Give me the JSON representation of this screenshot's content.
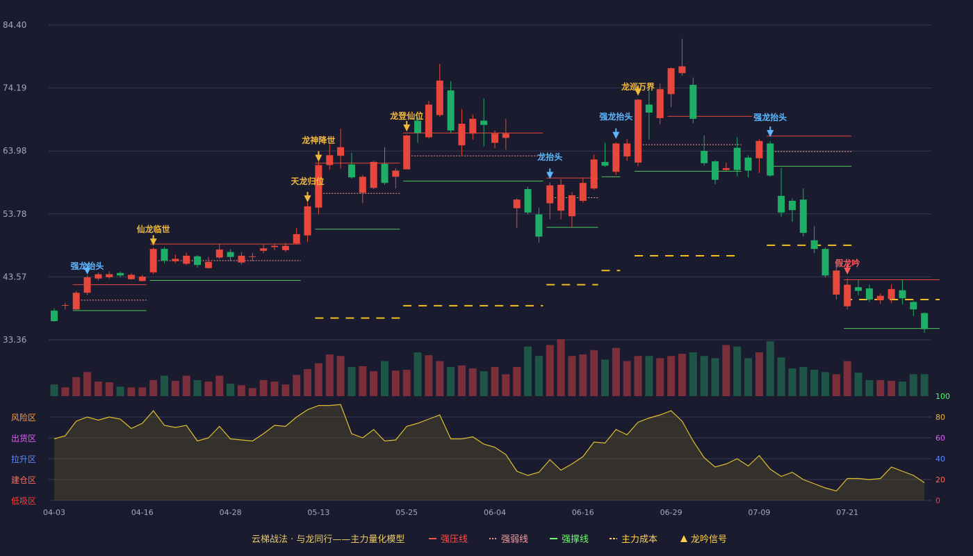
{
  "chart_data": {
    "type": "candlestick",
    "price_axis": {
      "ticks": [
        "84.40",
        "74.19",
        "63.98",
        "53.78",
        "43.57",
        "33.36"
      ],
      "ylim": [
        33.36,
        84.4
      ]
    },
    "date_ticks": [
      {
        "label": "04-03",
        "index": 0
      },
      {
        "label": "04-16",
        "index": 8
      },
      {
        "label": "04-28",
        "index": 16
      },
      {
        "label": "05-13",
        "index": 24
      },
      {
        "label": "05-25",
        "index": 32
      },
      {
        "label": "06-04",
        "index": 40
      },
      {
        "label": "06-16",
        "index": 48
      },
      {
        "label": "06-29",
        "index": 56
      },
      {
        "label": "07-09",
        "index": 64
      },
      {
        "label": "07-21",
        "index": 72
      }
    ],
    "candles": [
      [
        38.1,
        36.4,
        38.5,
        36.3
      ],
      [
        38.9,
        39.0,
        39.4,
        38.3
      ],
      [
        38.3,
        41.0,
        41.3,
        38.2
      ],
      [
        41.0,
        43.5,
        43.8,
        40.6
      ],
      [
        43.3,
        44.0,
        44.3,
        43.0
      ],
      [
        43.5,
        44.0,
        44.4,
        43.3
      ],
      [
        44.2,
        43.8,
        44.4,
        43.5
      ],
      [
        43.2,
        43.9,
        44.2,
        43.1
      ],
      [
        42.9,
        43.6,
        43.9,
        42.8
      ],
      [
        44.3,
        48.1,
        48.3,
        44.0
      ],
      [
        48.1,
        46.2,
        48.4,
        45.8
      ],
      [
        46.1,
        46.5,
        47.2,
        45.8
      ],
      [
        45.7,
        47.0,
        47.5,
        45.5
      ],
      [
        46.9,
        45.5,
        47.1,
        45.1
      ],
      [
        45.0,
        46.0,
        46.8,
        44.9
      ],
      [
        46.7,
        48.0,
        49.0,
        46.5
      ],
      [
        47.6,
        46.8,
        48.1,
        46.1
      ],
      [
        45.9,
        47.0,
        47.6,
        45.6
      ],
      [
        46.9,
        46.9,
        47.5,
        46.1
      ],
      [
        47.8,
        48.2,
        48.9,
        47.4
      ],
      [
        48.4,
        48.6,
        49.0,
        47.9
      ],
      [
        47.9,
        48.6,
        49.1,
        47.6
      ],
      [
        49.0,
        50.5,
        51.5,
        48.9
      ],
      [
        50.3,
        55.0,
        55.6,
        49.2
      ],
      [
        54.8,
        61.7,
        62.3,
        53.7
      ],
      [
        61.7,
        63.3,
        65.1,
        60.9
      ],
      [
        63.2,
        64.6,
        67.6,
        61.1
      ],
      [
        61.8,
        59.7,
        63.7,
        59.5
      ],
      [
        57.2,
        59.8,
        60.1,
        55.5
      ],
      [
        58.0,
        62.2,
        62.4,
        57.8
      ],
      [
        61.9,
        58.8,
        64.6,
        58.5
      ],
      [
        59.8,
        60.8,
        61.2,
        57.9
      ],
      [
        61.0,
        66.5,
        66.6,
        61.0
      ],
      [
        68.9,
        66.9,
        69.5,
        65.3
      ],
      [
        66.2,
        71.5,
        72.1,
        66.0
      ],
      [
        69.8,
        75.4,
        78.1,
        69.5
      ],
      [
        73.8,
        67.3,
        75.3,
        66.9
      ],
      [
        64.9,
        68.4,
        70.8,
        63.3
      ],
      [
        66.8,
        69.2,
        69.9,
        65.8
      ],
      [
        68.9,
        68.2,
        72.5,
        64.7
      ],
      [
        65.3,
        66.8,
        67.3,
        64.4
      ],
      [
        66.1,
        66.8,
        69.2,
        64.2
      ],
      [
        54.7,
        56.1,
        56.3,
        51.5
      ],
      [
        57.8,
        54.0,
        58.2,
        53.7
      ],
      [
        53.7,
        50.1,
        54.8,
        49.1
      ],
      [
        55.5,
        58.4,
        58.9,
        52.9
      ],
      [
        54.3,
        58.5,
        59.4,
        52.9
      ],
      [
        53.4,
        56.8,
        57.3,
        51.6
      ],
      [
        55.9,
        58.8,
        59.7,
        55.6
      ],
      [
        57.9,
        62.6,
        63.4,
        57.7
      ],
      [
        62.2,
        61.6,
        65.3,
        61.4
      ],
      [
        60.6,
        65.2,
        65.4,
        60.1
      ],
      [
        63.1,
        65.2,
        65.9,
        62.4
      ],
      [
        62.1,
        72.3,
        72.4,
        61.5
      ],
      [
        71.5,
        70.2,
        74.3,
        65.8
      ],
      [
        69.3,
        74.0,
        74.9,
        68.3
      ],
      [
        73.2,
        77.4,
        77.5,
        71.1
      ],
      [
        76.6,
        77.7,
        82.2,
        76.2
      ],
      [
        74.7,
        69.2,
        75.9,
        68.5
      ],
      [
        64.0,
        62.0,
        66.5,
        61.6
      ],
      [
        62.3,
        59.3,
        62.5,
        58.6
      ],
      [
        60.9,
        61.2,
        62.1,
        60.8
      ],
      [
        64.5,
        60.9,
        66.2,
        59.9
      ],
      [
        62.9,
        60.8,
        63.3,
        59.7
      ],
      [
        62.8,
        65.6,
        65.9,
        60.4
      ],
      [
        65.2,
        60.0,
        65.6,
        59.8
      ],
      [
        56.7,
        54.0,
        61.2,
        53.3
      ],
      [
        55.9,
        54.4,
        56.3,
        52.5
      ],
      [
        56.1,
        50.7,
        57.9,
        50.1
      ],
      [
        49.5,
        48.1,
        51.8,
        47.4
      ],
      [
        48.1,
        43.8,
        48.3,
        43.5
      ],
      [
        40.7,
        44.6,
        45.5,
        39.9
      ],
      [
        38.8,
        42.3,
        43.3,
        38.3
      ],
      [
        41.9,
        41.3,
        43.1,
        40.6
      ],
      [
        41.7,
        39.9,
        42.3,
        39.5
      ],
      [
        39.8,
        40.5,
        40.9,
        39.2
      ],
      [
        40.0,
        41.6,
        42.4,
        39.3
      ],
      [
        41.4,
        40.1,
        43.1,
        39.1
      ],
      [
        39.5,
        38.3,
        39.7,
        37.2
      ],
      [
        37.7,
        35.1,
        37.8,
        34.5
      ]
    ],
    "volume": [
      16,
      12,
      26,
      33,
      20,
      19,
      13,
      12,
      12,
      22,
      28,
      21,
      28,
      22,
      20,
      28,
      17,
      15,
      11,
      22,
      20,
      16,
      29,
      37,
      45,
      57,
      55,
      40,
      41,
      34,
      48,
      35,
      36,
      60,
      56,
      48,
      40,
      42,
      38,
      34,
      40,
      30,
      40,
      68,
      55,
      70,
      78,
      55,
      57,
      63,
      50,
      66,
      48,
      55,
      55,
      52,
      55,
      58,
      60,
      55,
      52,
      70,
      68,
      52,
      60,
      75,
      53,
      38,
      40,
      36,
      33,
      30,
      48,
      32,
      22,
      22,
      21,
      20,
      30,
      30
    ],
    "signals": [
      {
        "label": "强龙抬头",
        "index": 3,
        "price": 43.5,
        "color": "#5bb8ff",
        "dir": "down",
        "label_y": 387
      },
      {
        "label": "仙龙临世",
        "index": 9,
        "price": 48.2,
        "color": "#f0b93a",
        "dir": "down",
        "label_y": 334
      },
      {
        "label": "天龙归位",
        "index": 23,
        "price": 55.2,
        "color": "#f0b93a",
        "dir": "down",
        "label_y": 265
      },
      {
        "label": "龙神降世",
        "index": 24,
        "price": 61.8,
        "color": "#f0b93a",
        "dir": "down",
        "label_y": 206
      },
      {
        "label": "龙登仙位",
        "index": 32,
        "price": 66.7,
        "color": "#f0b93a",
        "dir": "down",
        "label_y": 171
      },
      {
        "label": "龙抬头",
        "index": 45,
        "price": 59.0,
        "color": "#5bb8ff",
        "dir": "down",
        "label_y": 230
      },
      {
        "label": "强龙抬头",
        "index": 51,
        "price": 65.5,
        "color": "#5bb8ff",
        "dir": "down",
        "label_y": 172
      },
      {
        "label": "龙巡万界",
        "index": 53,
        "price": 72.5,
        "color": "#f0b93a",
        "dir": "down",
        "label_y": 129
      },
      {
        "label": "强龙抬头",
        "index": 65,
        "price": 65.8,
        "color": "#5bb8ff",
        "dir": "down",
        "label_y": 173
      },
      {
        "label": "假龙吟",
        "index": 72,
        "price": 43.5,
        "color": "#ff5a5a",
        "dir": "down",
        "label_y": 383
      }
    ],
    "levels": [
      {
        "start": 2,
        "end": 8,
        "strong": 42.3,
        "weak": 39.8,
        "support": 38.1,
        "cost": null
      },
      {
        "start": 9,
        "end": 22,
        "strong": 48.9,
        "weak": 46.2,
        "support": 43.0,
        "cost": null
      },
      {
        "start": 24,
        "end": 31,
        "strong": 62.0,
        "weak": 57.1,
        "support": 51.3,
        "cost": 36.9
      },
      {
        "start": 32,
        "end": 44,
        "strong": 66.9,
        "weak": 63.2,
        "support": 59.1,
        "cost": 38.9
      },
      {
        "start": 45,
        "end": 49,
        "strong": 59.6,
        "weak": 56.4,
        "support": 51.6,
        "cost": 42.3
      },
      {
        "start": 50,
        "end": 51,
        "strong": null,
        "weak": null,
        "support": 59.8,
        "cost": 44.6
      },
      {
        "start": 53,
        "end": 62,
        "strong": null,
        "weak": 65.0,
        "support": 60.7,
        "cost": 47.0
      },
      {
        "start": 56,
        "end": 63,
        "strong": 69.6,
        "weak": null,
        "support": null,
        "cost": null
      },
      {
        "start": 65,
        "end": 72,
        "strong": 66.4,
        "weak": 63.9,
        "support": 61.5,
        "cost": 48.7
      },
      {
        "start": 72,
        "end": 80,
        "strong": 43.1,
        "weak": null,
        "support": 35.2,
        "cost": 39.9
      }
    ],
    "oscillator": {
      "ylim": [
        0,
        100
      ],
      "right_ticks": [
        {
          "label": "100",
          "color": "#4cff6a"
        },
        {
          "label": "80",
          "color": "#f0b93a"
        },
        {
          "label": "60",
          "color": "#e05cff"
        },
        {
          "label": "40",
          "color": "#5b8bff"
        },
        {
          "label": "20",
          "color": "#ff6b5a"
        },
        {
          "label": "0",
          "color": "#ff3b3b"
        }
      ],
      "zones": [
        {
          "label": "风险区",
          "color": "#ff9a3c",
          "value": 80
        },
        {
          "label": "出货区",
          "color": "#e05cff",
          "value": 60
        },
        {
          "label": "拉升区",
          "color": "#5b8bff",
          "value": 40
        },
        {
          "label": "建仓区",
          "color": "#ff6b5a",
          "value": 20
        },
        {
          "label": "低吸区",
          "color": "#ff3b3b",
          "value": 0
        }
      ],
      "values": [
        59,
        62,
        76,
        80,
        77,
        80,
        78,
        69,
        74,
        86,
        72,
        70,
        72,
        57,
        60,
        71,
        59,
        58,
        57,
        64,
        72,
        71,
        80,
        87,
        91,
        91,
        92,
        64,
        60,
        68,
        57,
        58,
        71,
        74,
        78,
        82,
        59,
        59,
        61,
        54,
        51,
        44,
        28,
        24,
        27,
        39,
        29,
        35,
        42,
        56,
        55,
        68,
        63,
        75,
        79,
        82,
        86,
        76,
        57,
        41,
        32,
        35,
        40,
        33,
        43,
        30,
        23,
        27,
        20,
        16,
        12,
        9,
        21,
        21,
        20,
        21,
        32,
        28,
        24,
        17
      ]
    },
    "legend": [
      {
        "text": "云梯战法 · 与龙同行——主力量化模型",
        "color": "#e8c96a",
        "swatch": "none"
      },
      {
        "text": "强压线",
        "color": "#ff4d4d",
        "swatch": "solid"
      },
      {
        "text": "强弱线",
        "color": "#ff9a9a",
        "swatch": "dotted"
      },
      {
        "text": "强撑线",
        "color": "#6bff6b",
        "swatch": "solid"
      },
      {
        "text": "主力成本",
        "color": "#ffd34d",
        "swatch": "dashed"
      },
      {
        "text": "龙吟信号",
        "color": "#ffd34d",
        "swatch": "triangle"
      }
    ],
    "colors": {
      "up": "#e8473c",
      "down": "#1fae65",
      "vol_up": "#7a2f3a",
      "vol_down": "#1f5546",
      "grid": "#383b52",
      "axis_text": "#a8a8b8"
    }
  }
}
